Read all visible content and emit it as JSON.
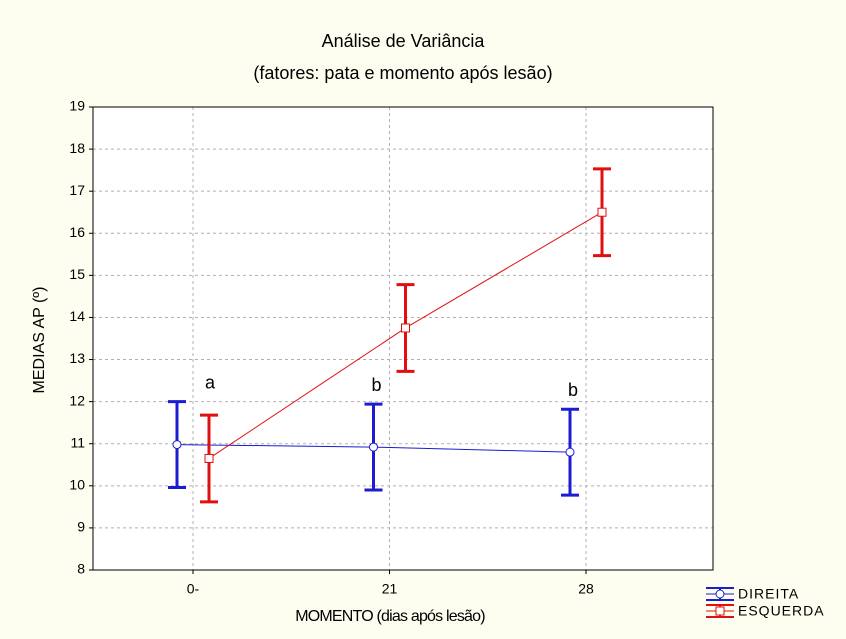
{
  "chart_data": {
    "type": "line",
    "title": "Análise de Variância",
    "subtitle": "(fatores: pata e momento após lesão)",
    "y_label": "MEDIAS AP (º)",
    "x_label": "MOMENTO (dias após lesão)",
    "categories": [
      "0-",
      "21",
      "28"
    ],
    "series": [
      {
        "name": "DIREITA",
        "color": "#1c1cd0",
        "marker": "circle",
        "values": [
          10.98,
          10.92,
          10.8
        ],
        "errors": [
          1.02,
          1.02,
          1.02
        ]
      },
      {
        "name": "ESQUERDA",
        "color": "#e01010",
        "marker": "square",
        "values": [
          10.65,
          13.75,
          16.5
        ],
        "errors": [
          1.03,
          1.03,
          1.03
        ]
      }
    ],
    "annotations": [
      {
        "text": "a"
      },
      {
        "text": "b"
      },
      {
        "text": "b"
      }
    ],
    "ylim": [
      8,
      19
    ],
    "yticks": [
      8,
      9,
      10,
      11,
      12,
      13,
      14,
      15,
      16,
      17,
      18,
      19
    ],
    "grid": true,
    "legend": "bottom-right"
  }
}
